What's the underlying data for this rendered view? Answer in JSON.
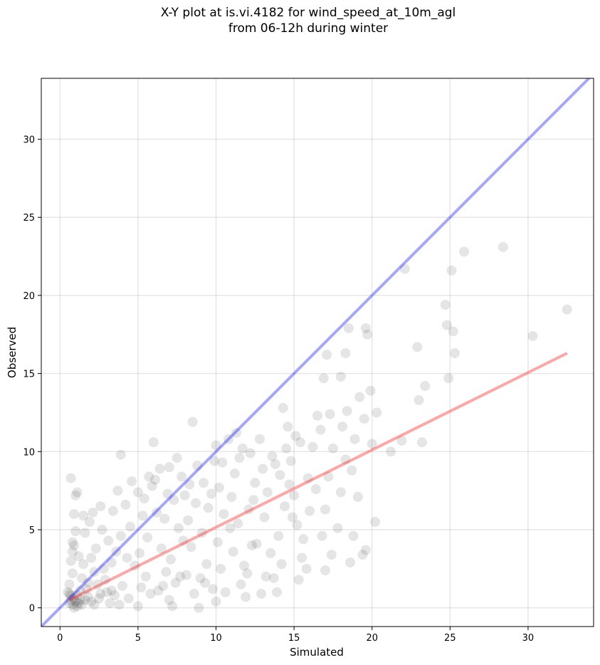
{
  "chart_data": {
    "type": "scatter",
    "title": "X-Y plot at is.vi.4182 for wind_speed_at_10m_agl\nfrom 06-12h during winter",
    "xlabel": "Simulated",
    "ylabel": "Observed",
    "xlim": [
      -1.2,
      34.2
    ],
    "ylim": [
      -1.2,
      33.9
    ],
    "xticks": [
      0,
      5,
      10,
      15,
      20,
      25,
      30
    ],
    "yticks": [
      0,
      5,
      10,
      15,
      20,
      25,
      30
    ],
    "grid": true,
    "marker_color": "#000000",
    "marker_alpha": 0.1,
    "identity_line": {
      "color": "#0000ff",
      "alpha": 0.35,
      "x": [
        -1.2,
        34.2
      ],
      "y": [
        -1.2,
        34.2
      ]
    },
    "regression_line": {
      "color": "#ff0000",
      "alpha": 0.35,
      "x": [
        0.6,
        32.5
      ],
      "y": [
        0.5,
        16.3
      ]
    },
    "points": [
      [
        0.6,
        0.3
      ],
      [
        0.7,
        0.5
      ],
      [
        0.8,
        0.2
      ],
      [
        0.9,
        0.6
      ],
      [
        1.0,
        0.4
      ],
      [
        1.1,
        0.1
      ],
      [
        0.7,
        0.8
      ],
      [
        1.2,
        0.3
      ],
      [
        0.9,
        0.0
      ],
      [
        1.3,
        0.5
      ],
      [
        0.5,
        1.0
      ],
      [
        0.6,
        1.5
      ],
      [
        0.8,
        2.2
      ],
      [
        0.7,
        3.0
      ],
      [
        0.8,
        3.6
      ],
      [
        0.9,
        4.0
      ],
      [
        0.7,
        8.3
      ],
      [
        1.0,
        7.2
      ],
      [
        1.1,
        7.4
      ],
      [
        0.9,
        6.0
      ],
      [
        1.0,
        4.9
      ],
      [
        0.8,
        4.2
      ],
      [
        1.2,
        3.3
      ],
      [
        1.5,
        2.8
      ],
      [
        1.4,
        1.9
      ],
      [
        1.7,
        1.2
      ],
      [
        1.8,
        0.7
      ],
      [
        2.0,
        0.4
      ],
      [
        2.2,
        0.2
      ],
      [
        2.5,
        0.6
      ],
      [
        1.6,
        4.8
      ],
      [
        1.9,
        5.5
      ],
      [
        2.1,
        6.1
      ],
      [
        2.6,
        6.5
      ],
      [
        1.5,
        5.9
      ],
      [
        2.3,
        3.8
      ],
      [
        2.0,
        3.2
      ],
      [
        2.8,
        2.5
      ],
      [
        2.4,
        1.5
      ],
      [
        3.0,
        1.0
      ],
      [
        3.2,
        0.3
      ],
      [
        3.5,
        0.8
      ],
      [
        3.8,
        0.2
      ],
      [
        4.0,
        1.4
      ],
      [
        3.3,
        2.9
      ],
      [
        3.6,
        3.6
      ],
      [
        3.9,
        4.6
      ],
      [
        3.7,
        7.5
      ],
      [
        3.9,
        9.8
      ],
      [
        4.2,
        6.6
      ],
      [
        4.5,
        5.2
      ],
      [
        4.8,
        2.7
      ],
      [
        4.4,
        0.6
      ],
      [
        5.0,
        0.1
      ],
      [
        5.2,
        1.3
      ],
      [
        5.5,
        2.0
      ],
      [
        5.1,
        3.5
      ],
      [
        5.3,
        5.9
      ],
      [
        5.0,
        7.4
      ],
      [
        5.4,
        7.0
      ],
      [
        5.6,
        4.5
      ],
      [
        5.9,
        7.8
      ],
      [
        6.1,
        8.2
      ],
      [
        6.0,
        10.6
      ],
      [
        6.4,
        8.9
      ],
      [
        6.2,
        6.1
      ],
      [
        6.5,
        3.8
      ],
      [
        6.8,
        2.3
      ],
      [
        6.3,
        1.1
      ],
      [
        7.0,
        0.5
      ],
      [
        7.2,
        0.1
      ],
      [
        7.4,
        1.6
      ],
      [
        7.1,
        3.1
      ],
      [
        7.6,
        5.1
      ],
      [
        7.3,
        6.9
      ],
      [
        7.5,
        9.6
      ],
      [
        7.8,
        8.4
      ],
      [
        8.0,
        7.2
      ],
      [
        8.2,
        5.6
      ],
      [
        8.4,
        3.9
      ],
      [
        8.1,
        2.1
      ],
      [
        8.6,
        0.9
      ],
      [
        8.9,
        0.0
      ],
      [
        9.0,
        1.9
      ],
      [
        8.5,
        11.9
      ],
      [
        8.8,
        9.1
      ],
      [
        9.2,
        8.0
      ],
      [
        9.5,
        6.4
      ],
      [
        9.1,
        4.8
      ],
      [
        9.4,
        2.8
      ],
      [
        9.8,
        1.2
      ],
      [
        10.0,
        0.4
      ],
      [
        10.3,
        2.5
      ],
      [
        10.1,
        4.2
      ],
      [
        10.5,
        6.0
      ],
      [
        10.2,
        7.7
      ],
      [
        10.4,
        9.3
      ],
      [
        10.0,
        10.4
      ],
      [
        10.8,
        10.8
      ],
      [
        11.2,
        8.6
      ],
      [
        11.0,
        7.1
      ],
      [
        11.4,
        5.4
      ],
      [
        11.1,
        3.6
      ],
      [
        11.6,
        1.5
      ],
      [
        11.9,
        0.7
      ],
      [
        12.0,
        2.2
      ],
      [
        12.3,
        4.0
      ],
      [
        12.1,
        6.3
      ],
      [
        12.5,
        8.0
      ],
      [
        12.2,
        9.9
      ],
      [
        12.8,
        10.8
      ],
      [
        13.0,
        8.9
      ],
      [
        13.3,
        7.4
      ],
      [
        13.1,
        5.8
      ],
      [
        13.5,
        3.5
      ],
      [
        13.7,
        1.9
      ],
      [
        13.9,
        1.0
      ],
      [
        14.2,
        2.8
      ],
      [
        14.0,
        4.6
      ],
      [
        14.4,
        6.5
      ],
      [
        14.1,
        8.5
      ],
      [
        14.5,
        10.2
      ],
      [
        14.3,
        12.8
      ],
      [
        14.6,
        11.6
      ],
      [
        14.8,
        9.4
      ],
      [
        15.0,
        7.2
      ],
      [
        15.2,
        5.3
      ],
      [
        15.5,
        3.2
      ],
      [
        15.3,
        1.8
      ],
      [
        15.8,
        2.5
      ],
      [
        15.6,
        4.4
      ],
      [
        16.0,
        6.2
      ],
      [
        15.9,
        8.3
      ],
      [
        16.2,
        10.3
      ],
      [
        16.5,
        12.3
      ],
      [
        16.7,
        11.4
      ],
      [
        16.9,
        14.7
      ],
      [
        17.1,
        16.2
      ],
      [
        17.3,
        12.4
      ],
      [
        17.5,
        10.2
      ],
      [
        17.2,
        8.4
      ],
      [
        17.0,
        6.3
      ],
      [
        16.8,
        4.6
      ],
      [
        17.4,
        3.4
      ],
      [
        17.0,
        2.4
      ],
      [
        17.8,
        5.1
      ],
      [
        18.0,
        7.4
      ],
      [
        18.3,
        9.5
      ],
      [
        18.1,
        11.6
      ],
      [
        18.4,
        12.6
      ],
      [
        18.0,
        14.8
      ],
      [
        18.3,
        16.3
      ],
      [
        18.5,
        17.9
      ],
      [
        18.9,
        10.8
      ],
      [
        18.7,
        8.8
      ],
      [
        19.1,
        7.1
      ],
      [
        18.8,
        4.6
      ],
      [
        18.6,
        2.9
      ],
      [
        19.4,
        3.4
      ],
      [
        19.6,
        3.7
      ],
      [
        19.2,
        13.5
      ],
      [
        19.5,
        12.1
      ],
      [
        19.7,
        17.5
      ],
      [
        19.6,
        17.9
      ],
      [
        19.9,
        13.9
      ],
      [
        20.0,
        10.5
      ],
      [
        20.3,
        12.5
      ],
      [
        20.2,
        5.5
      ],
      [
        21.2,
        10.0
      ],
      [
        21.9,
        10.7
      ],
      [
        22.1,
        21.7
      ],
      [
        22.9,
        16.7
      ],
      [
        23.0,
        13.3
      ],
      [
        23.2,
        10.6
      ],
      [
        23.4,
        14.2
      ],
      [
        24.7,
        19.4
      ],
      [
        24.8,
        18.1
      ],
      [
        24.9,
        14.7
      ],
      [
        25.1,
        21.6
      ],
      [
        25.2,
        17.7
      ],
      [
        25.3,
        16.3
      ],
      [
        25.9,
        22.8
      ],
      [
        28.4,
        23.1
      ],
      [
        30.3,
        17.4
      ],
      [
        32.5,
        19.1
      ],
      [
        8.3,
        7.9
      ],
      [
        9.7,
        7.3
      ],
      [
        11.7,
        10.2
      ],
      [
        13.6,
        9.7
      ],
      [
        15.1,
        11.0
      ],
      [
        6.7,
        5.7
      ],
      [
        7.9,
        4.3
      ],
      [
        10.9,
        5.1
      ],
      [
        12.6,
        4.1
      ],
      [
        14.9,
        5.8
      ],
      [
        16.4,
        7.6
      ],
      [
        5.8,
        0.9
      ],
      [
        6.6,
        1.4
      ],
      [
        7.7,
        2.0
      ],
      [
        9.3,
        1.6
      ],
      [
        10.6,
        1.0
      ],
      [
        11.8,
        2.7
      ],
      [
        12.9,
        0.9
      ],
      [
        13.2,
        2.0
      ],
      [
        3.1,
        4.3
      ],
      [
        4.3,
        3.2
      ],
      [
        2.7,
        5.0
      ],
      [
        3.4,
        6.2
      ],
      [
        4.6,
        8.1
      ],
      [
        5.7,
        8.4
      ],
      [
        6.9,
        7.3
      ],
      [
        7.0,
        9.0
      ],
      [
        8.7,
        6.7
      ],
      [
        9.9,
        9.4
      ],
      [
        11.3,
        11.2
      ],
      [
        11.5,
        9.6
      ],
      [
        12.4,
        6.9
      ],
      [
        13.8,
        9.2
      ],
      [
        14.7,
        7.9
      ],
      [
        15.4,
        10.6
      ],
      [
        1.3,
        1.1
      ],
      [
        1.1,
        0.8
      ],
      [
        1.4,
        0.2
      ],
      [
        0.6,
        0.9
      ],
      [
        1.6,
        0.5
      ],
      [
        1.8,
        1.6
      ],
      [
        2.2,
        2.3
      ],
      [
        2.9,
        1.8
      ],
      [
        3.3,
        1.1
      ],
      [
        2.6,
        0.9
      ]
    ]
  }
}
